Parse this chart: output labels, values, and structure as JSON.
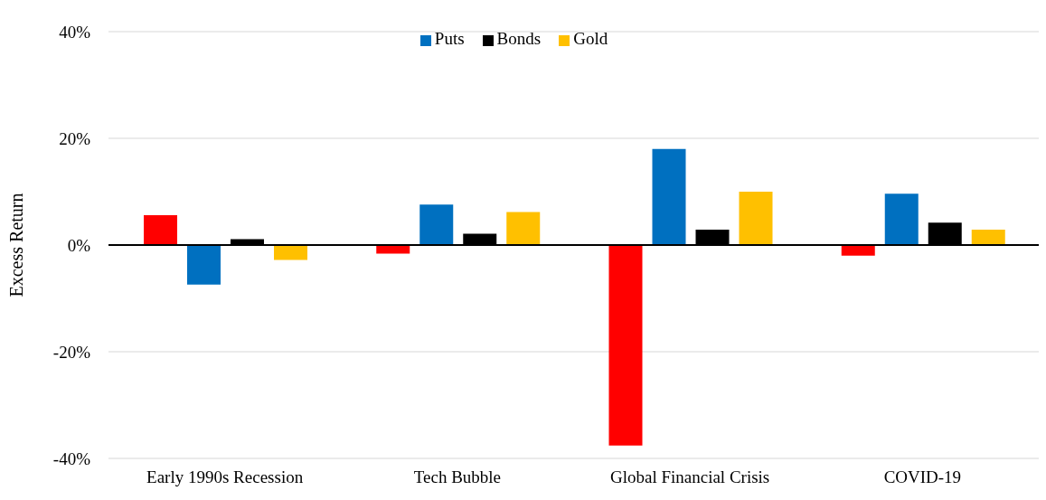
{
  "chart_data": {
    "type": "bar",
    "ylabel": "Excess Return",
    "categories": [
      "Early 1990s Recession",
      "Tech Bubble",
      "Global Financial Crisis",
      "COVID-19"
    ],
    "series": [
      {
        "color": "#ff0000",
        "values": [
          5.6,
          -1.6,
          -37.6,
          -2.0
        ]
      },
      {
        "name": "Puts",
        "color": "#0070c0",
        "values": [
          -7.4,
          7.6,
          18.0,
          9.6
        ]
      },
      {
        "name": "Bonds",
        "color": "#000000",
        "values": [
          1.1,
          2.1,
          2.9,
          4.2
        ]
      },
      {
        "name": "Gold",
        "color": "#ffc000",
        "values": [
          -2.8,
          6.2,
          10.0,
          2.9
        ]
      }
    ],
    "ylim": [
      -40,
      40
    ],
    "yticks": [
      {
        "value": -40,
        "label": "-40%"
      },
      {
        "value": -20,
        "label": "-20%"
      },
      {
        "value": 0,
        "label": "0%"
      },
      {
        "value": 20,
        "label": "20%"
      },
      {
        "value": 40,
        "label": "40%"
      }
    ],
    "ref_lines": [
      {
        "axis": "y",
        "value": 0,
        "color": "#000000"
      }
    ],
    "grid": "y",
    "legend": "top"
  }
}
